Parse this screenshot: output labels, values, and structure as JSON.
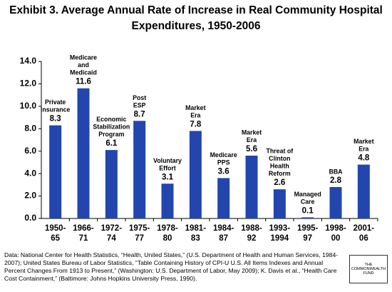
{
  "chart_data": {
    "type": "bar",
    "title": [
      "Exhibit 3. Average Annual Rate of Increase in Real Community Hospital",
      "Expenditures, 1950-2006"
    ],
    "categories": [
      "1950-\n65",
      "1966-\n71",
      "1972-\n74",
      "1975-\n77",
      "1978-\n80",
      "1981-\n83",
      "1984-\n87",
      "1988-\n92",
      "1993-\n1994",
      "1995-\n97",
      "1998-\n00",
      "2001-\n06"
    ],
    "values": [
      8.3,
      11.6,
      6.1,
      8.7,
      3.1,
      7.8,
      3.6,
      5.6,
      2.6,
      0.1,
      2.8,
      4.8
    ],
    "annotations": [
      "Private\nInsurance",
      "Medicare\nand\nMedicaid",
      "Economic\nStabilization\nProgram",
      "Post\nESP",
      "Voluntary\nEffort",
      "Market\nEra",
      "Medicare\nPPS",
      "Market\nEra",
      "Threat of\nClinton\nHealth\nReform",
      "Managed\nCare",
      "BBA",
      "Market\nEra"
    ],
    "color": "#2246ae",
    "ylim": [
      0,
      14
    ],
    "yticks": [
      {
        "value": 0,
        "label": "0.0"
      },
      {
        "value": 2,
        "label": "2.0"
      },
      {
        "value": 4,
        "label": "4.0"
      },
      {
        "value": 6,
        "label": "6.0"
      },
      {
        "value": 8,
        "label": "8.0"
      },
      {
        "value": 10,
        "label": "10.0"
      },
      {
        "value": 12,
        "label": "12.0"
      },
      {
        "value": 14,
        "label": "14.0"
      }
    ],
    "grid": false,
    "source": "Data: National Center for Health Statistics, “Health, United States,” (U.S. Department of Health and Human Services, 1984-2007); United States Bureau of Labor Statistics, “Table Containing History of CPI-U U.S. All Items Indexes and Annual Percent Changes From 1913 to Present,” (Washington: U.S. Department of Labor, May 2009); K. Davis et al., “Health Care Cost Containment,” (Baltimore: Johns Hopkins University Press, 1990).",
    "logo": [
      "THE",
      "COMMONWEALTH",
      "FUND"
    ]
  }
}
